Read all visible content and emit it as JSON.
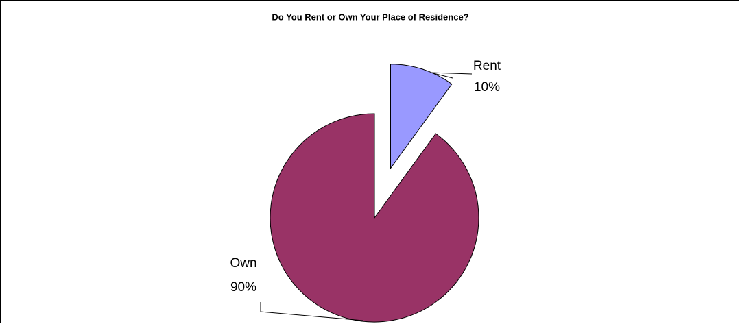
{
  "chart_data": {
    "type": "pie",
    "title": "Do You Rent or Own Your Place of Residence?",
    "categories": [
      "Rent",
      "Own"
    ],
    "values": [
      10,
      90
    ],
    "value_labels": [
      "10%",
      "90%"
    ],
    "colors": [
      "#9999ff",
      "#993366"
    ],
    "exploded": [
      true,
      false
    ]
  }
}
